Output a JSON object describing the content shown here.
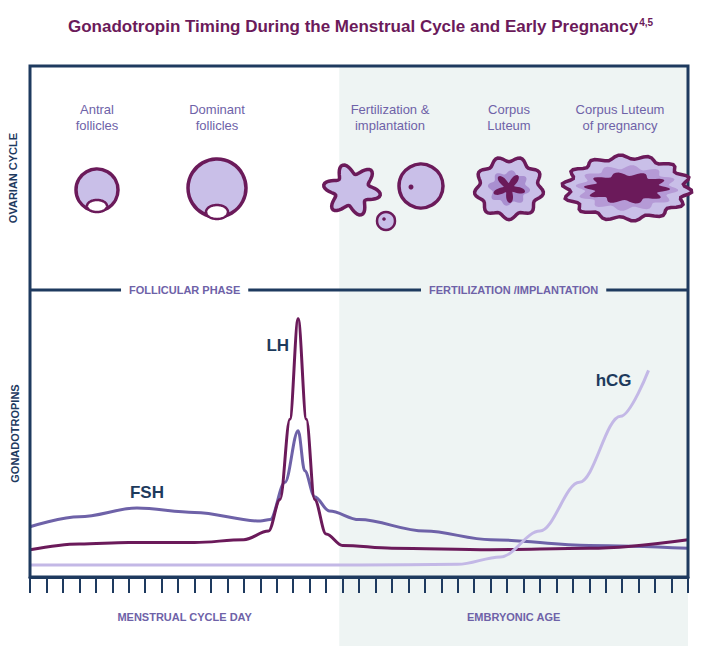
{
  "chart_data": {
    "type": "line",
    "title": "Gonadotropin Timing During the Menstrual Cycle and Early Pregnancy",
    "title_superscript": "4,5",
    "ylabel": "GONADOTROPINS",
    "xlim": [
      0,
      40
    ],
    "xticks": [
      0,
      1,
      2,
      3,
      4,
      5,
      6,
      7,
      8,
      9,
      10,
      11,
      12,
      13,
      14,
      15,
      16,
      17,
      18,
      19,
      20,
      21,
      22,
      23,
      24,
      25,
      26,
      27,
      28,
      29,
      30,
      31,
      32,
      33,
      34,
      35,
      36,
      37,
      38,
      39,
      40
    ],
    "ylim": [
      0,
      100
    ],
    "tick_labels": false,
    "grid": false,
    "regions": [
      {
        "from": 0,
        "to": 18.8,
        "phase": "FOLLICULAR PHASE",
        "xlabel": "MENSTRUAL CYCLE DAY",
        "shaded": false
      },
      {
        "from": 18.8,
        "to": 40,
        "phase": "FERTILIZATION /IMPLANTATION",
        "xlabel": "EMBRYONIC AGE",
        "shaded": true
      }
    ],
    "series": [
      {
        "name": "FSH",
        "color": "#6e62a8",
        "x": [
          0,
          3,
          6.5,
          10,
          14,
          14.6,
          15.5,
          16.3,
          16.7,
          17.3,
          18.2,
          20,
          24,
          28,
          34,
          40
        ],
        "values": [
          17.5,
          21,
          24,
          22.5,
          19.5,
          20,
          33,
          51,
          37,
          28,
          23,
          20,
          16,
          13,
          11,
          10
        ]
      },
      {
        "name": "LH",
        "color": "#6b1a5a",
        "x": [
          0,
          3,
          6,
          10,
          13,
          14.5,
          15.2,
          15.8,
          16.3,
          16.8,
          17.3,
          18,
          19,
          22,
          28,
          34,
          40
        ],
        "values": [
          9.5,
          11.5,
          12,
          12,
          13,
          16,
          27,
          55,
          90,
          55,
          27,
          15,
          11,
          10,
          9.5,
          10,
          13
        ]
      },
      {
        "name": "hCG",
        "color": "#c3b8e6",
        "x": [
          0,
          10,
          20,
          26,
          28.6,
          31,
          33.4,
          35.9,
          37.6
        ],
        "values": [
          4.2,
          4.2,
          4.2,
          4.4,
          7,
          16,
          33,
          56,
          72
        ]
      }
    ]
  },
  "diagram": {
    "row_label": "OVARIAN CYCLE",
    "stages": [
      "Antral follicles",
      "Dominant follicles",
      "Fertilization & implantation",
      "Corpus Luteum",
      "Corpus Luteum of pregnancy"
    ]
  }
}
